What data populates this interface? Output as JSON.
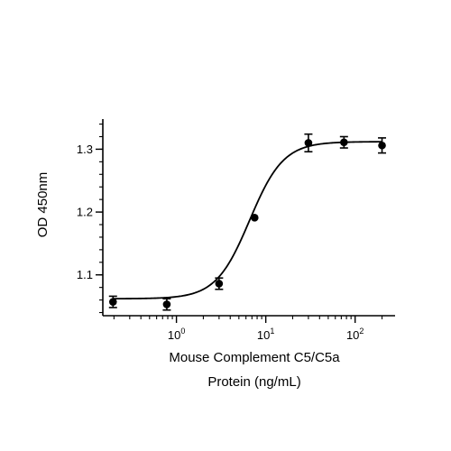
{
  "chart_data": {
    "type": "scatter",
    "title": "",
    "xlabel_lines": [
      "Mouse Complement C5/C5a",
      "Protein (ng/mL)"
    ],
    "ylabel": "OD 450nm",
    "x_scale": "log",
    "xlim": [
      0.15,
      280
    ],
    "ylim": [
      1.035,
      1.348
    ],
    "x_ticks": [
      {
        "value": 1,
        "base": "10",
        "exp": "0"
      },
      {
        "value": 10,
        "base": "10",
        "exp": "1"
      },
      {
        "value": 100,
        "base": "10",
        "exp": "2"
      }
    ],
    "y_ticks": [
      {
        "value": 1.1,
        "label": "1.1"
      },
      {
        "value": 1.2,
        "label": "1.2"
      },
      {
        "value": 1.3,
        "label": "1.3"
      }
    ],
    "points": [
      {
        "x": 0.195,
        "y": 1.057,
        "err": 0.009
      },
      {
        "x": 0.78,
        "y": 1.053,
        "err": 0.009
      },
      {
        "x": 3.0,
        "y": 1.086,
        "err": 0.009
      },
      {
        "x": 7.5,
        "y": 1.191,
        "err": 0
      },
      {
        "x": 30.0,
        "y": 1.31,
        "err": 0.014
      },
      {
        "x": 75.0,
        "y": 1.311,
        "err": 0.009
      },
      {
        "x": 200.0,
        "y": 1.306,
        "err": 0.012
      }
    ],
    "fit": {
      "model": "4PL",
      "bottom": 1.062,
      "top": 1.312,
      "ec50": 6.6,
      "hill": 2.3
    },
    "grid": false,
    "legend": "none"
  }
}
